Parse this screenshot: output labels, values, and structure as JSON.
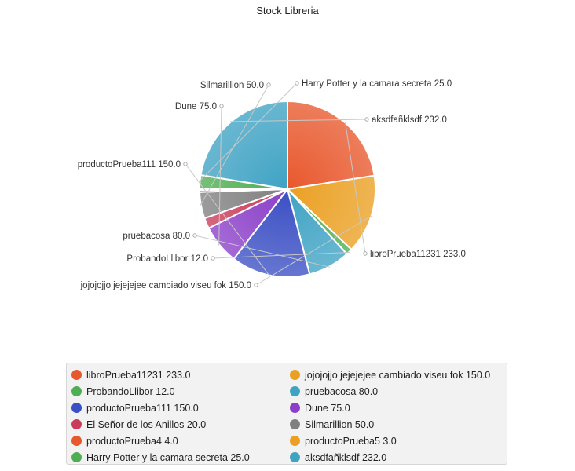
{
  "chart_data": {
    "type": "pie",
    "title": "Stock Libreria",
    "slices": [
      {
        "label": "libroPrueba11231 233.0",
        "value": 233.0,
        "color": "#e8582d"
      },
      {
        "label": "jojojojjo jejejejee cambiado viseu fok 150.0",
        "value": 150.0,
        "color": "#eba023"
      },
      {
        "label": "ProbandoLlibor 12.0",
        "value": 12.0,
        "color": "#4fae52"
      },
      {
        "label": "pruebacosa 80.0",
        "value": 80.0,
        "color": "#3fa3c4"
      },
      {
        "label": "productoPrueba111 150.0",
        "value": 150.0,
        "color": "#3b4fc4"
      },
      {
        "label": "Dune 75.0",
        "value": 75.0,
        "color": "#8b3fc9"
      },
      {
        "label": "El Señor de los Anillos 20.0",
        "value": 20.0,
        "color": "#c93c5a"
      },
      {
        "label": "Silmarillion 50.0",
        "value": 50.0,
        "color": "#808080"
      },
      {
        "label": "productoPrueba4 4.0",
        "value": 4.0,
        "color": "#e8582d"
      },
      {
        "label": "productoPrueba5 3.0",
        "value": 3.0,
        "color": "#eba023"
      },
      {
        "label": "Harry Potter y la camara secreta 25.0",
        "value": 25.0,
        "color": "#4fae52"
      },
      {
        "label": "aksdfañklsdf 232.0",
        "value": 232.0,
        "color": "#3fa3c4"
      }
    ],
    "callouts": [
      "libroPrueba11231 233.0",
      "jojojojjo jejejejee cambiado viseu fok 150.0",
      "ProbandoLlibor 12.0",
      "pruebacosa 80.0",
      "productoPrueba111 150.0",
      "Dune 75.0",
      "Silmarillion 50.0",
      "Harry Potter y la camara secreta 25.0",
      "aksdfañklsdf 232.0"
    ],
    "legend": {
      "placement": "bottom",
      "items": [
        {
          "label": "libroPrueba11231 233.0",
          "color": "#e8582d"
        },
        {
          "label": "jojojojjo jejejejee cambiado viseu fok 150.0",
          "color": "#eba023"
        },
        {
          "label": "ProbandoLlibor 12.0",
          "color": "#4fae52"
        },
        {
          "label": "pruebacosa 80.0",
          "color": "#3fa3c4"
        },
        {
          "label": "productoPrueba111 150.0",
          "color": "#3b4fc4"
        },
        {
          "label": "Dune 75.0",
          "color": "#8b3fc9"
        },
        {
          "label": "El Señor de los Anillos 20.0",
          "color": "#c93c5a"
        },
        {
          "label": "Silmarillion 50.0",
          "color": "#808080"
        },
        {
          "label": "productoPrueba4 4.0",
          "color": "#e8582d"
        },
        {
          "label": "productoPrueba5 3.0",
          "color": "#eba023"
        },
        {
          "label": "Harry Potter y la camara secreta 25.0",
          "color": "#4fae52"
        },
        {
          "label": "aksdfañklsdf 232.0",
          "color": "#3fa3c4"
        }
      ]
    }
  }
}
